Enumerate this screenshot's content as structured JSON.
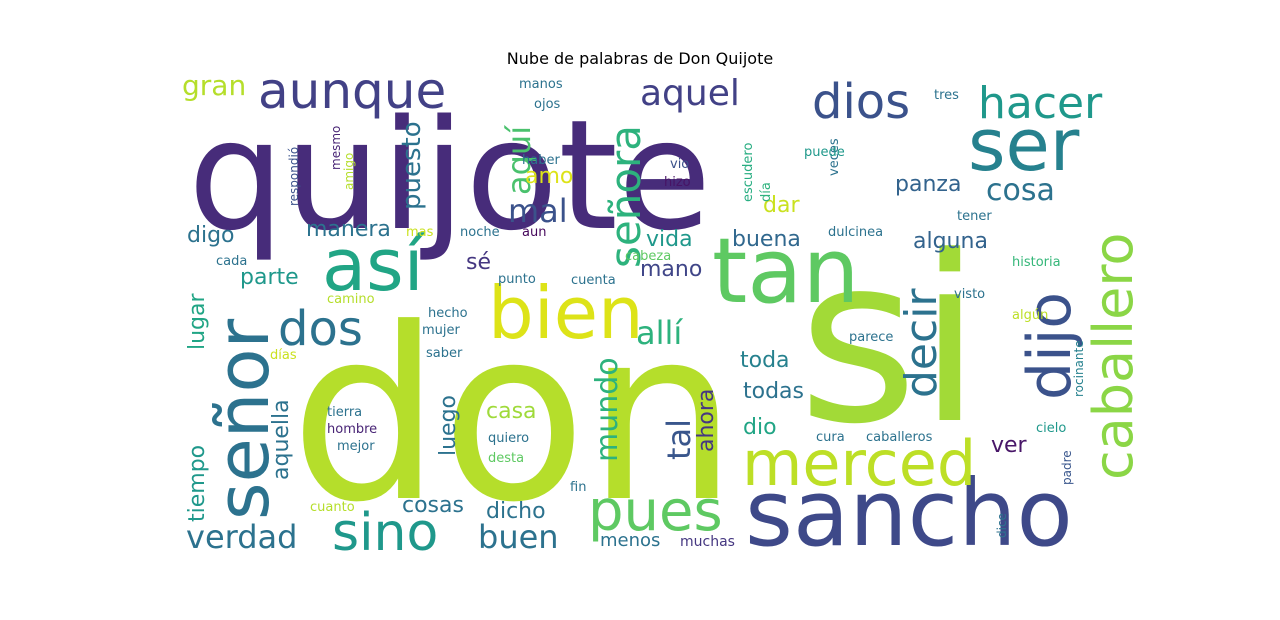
{
  "title": "Nube de palabras de Don Quijote",
  "words": [
    {
      "text": "quijote"
    },
    {
      "text": "don"
    },
    {
      "text": "si"
    },
    {
      "text": "sancho"
    },
    {
      "text": "tan"
    },
    {
      "text": "así"
    },
    {
      "text": "bien"
    },
    {
      "text": "ser"
    },
    {
      "text": "señor"
    },
    {
      "text": "merced"
    },
    {
      "text": "dijo"
    },
    {
      "text": "caballero"
    },
    {
      "text": "pues"
    },
    {
      "text": "sino"
    },
    {
      "text": "dios"
    },
    {
      "text": "aunque"
    },
    {
      "text": "hacer"
    },
    {
      "text": "dos"
    },
    {
      "text": "señora"
    },
    {
      "text": "decir"
    },
    {
      "text": "aquel"
    },
    {
      "text": "aquí"
    },
    {
      "text": "cosa"
    },
    {
      "text": "mal"
    },
    {
      "text": "verdad"
    },
    {
      "text": "buen"
    },
    {
      "text": "allí"
    },
    {
      "text": "tal"
    },
    {
      "text": "mundo"
    },
    {
      "text": "gran"
    },
    {
      "text": "puesto"
    },
    {
      "text": "manera"
    },
    {
      "text": "vida"
    },
    {
      "text": "buena"
    },
    {
      "text": "panza"
    },
    {
      "text": "alguna"
    },
    {
      "text": "dar"
    },
    {
      "text": "amo"
    },
    {
      "text": "sé"
    },
    {
      "text": "mano"
    },
    {
      "text": "parte"
    },
    {
      "text": "digo"
    },
    {
      "text": "lugar"
    },
    {
      "text": "tiempo"
    },
    {
      "text": "aquella"
    },
    {
      "text": "luego"
    },
    {
      "text": "casa"
    },
    {
      "text": "ahora"
    },
    {
      "text": "toda"
    },
    {
      "text": "todas"
    },
    {
      "text": "dio"
    },
    {
      "text": "ver"
    },
    {
      "text": "cosas"
    },
    {
      "text": "dicho"
    },
    {
      "text": "menos"
    },
    {
      "text": "muchas"
    },
    {
      "text": "respondió"
    },
    {
      "text": "mesmo"
    },
    {
      "text": "amigo"
    },
    {
      "text": "manos"
    },
    {
      "text": "ojos"
    },
    {
      "text": "haber"
    },
    {
      "text": "vio"
    },
    {
      "text": "hizo"
    },
    {
      "text": "escudero"
    },
    {
      "text": "día"
    },
    {
      "text": "veces"
    },
    {
      "text": "puede"
    },
    {
      "text": "tres"
    },
    {
      "text": "tener"
    },
    {
      "text": "dulcinea"
    },
    {
      "text": "historia"
    },
    {
      "text": "visto"
    },
    {
      "text": "algún"
    },
    {
      "text": "rocinante"
    },
    {
      "text": "parece"
    },
    {
      "text": "cielo"
    },
    {
      "text": "padre"
    },
    {
      "text": "cura"
    },
    {
      "text": "caballeros"
    },
    {
      "text": "dice"
    },
    {
      "text": "mas"
    },
    {
      "text": "noche"
    },
    {
      "text": "aun"
    },
    {
      "text": "cada"
    },
    {
      "text": "cabeza"
    },
    {
      "text": "punto"
    },
    {
      "text": "cuenta"
    },
    {
      "text": "camino"
    },
    {
      "text": "hecho"
    },
    {
      "text": "mujer"
    },
    {
      "text": "días"
    },
    {
      "text": "saber"
    },
    {
      "text": "tierra"
    },
    {
      "text": "hombre"
    },
    {
      "text": "mejor"
    },
    {
      "text": "quiero"
    },
    {
      "text": "desta"
    },
    {
      "text": "cuanto"
    },
    {
      "text": "fin"
    }
  ]
}
